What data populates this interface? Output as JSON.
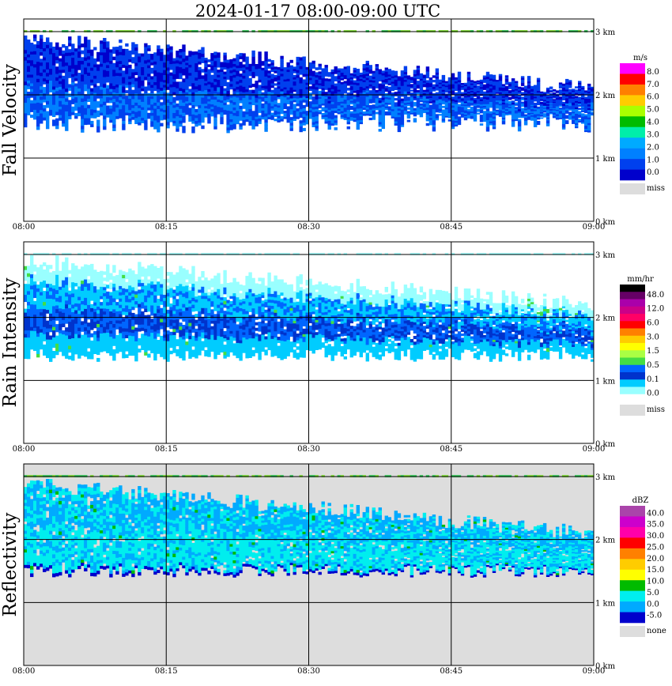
{
  "title": "2024-01-17   08:00-09:00 UTC",
  "time_ticks": [
    "08:00",
    "08:15",
    "08:30",
    "08:45",
    "09:00"
  ],
  "height_ticks": [
    "0 km",
    "1 km",
    "2 km",
    "3 km"
  ],
  "chart_data": [
    {
      "type": "heatmap",
      "panel": "Fall Velocity",
      "ylabel": "Fall Velocity",
      "x_range": [
        "08:00",
        "09:00"
      ],
      "ylim_km": [
        0,
        3.2
      ],
      "grid": true,
      "colorbar": {
        "unit": "m/s",
        "labels": [
          "8.0",
          "7.0",
          "6.0",
          "5.0",
          "4.0",
          "3.0",
          "2.0",
          "1.0",
          "0.0"
        ],
        "colors": [
          "#ff00ff",
          "#ff0000",
          "#ff8000",
          "#ffcc00",
          "#aaff00",
          "#00bb00",
          "#00eeaa",
          "#00aaff",
          "#0080ff",
          "#0040ee",
          "#0000cc"
        ],
        "missing_label": "miss",
        "missing_color": "#dddddd"
      },
      "layer": {
        "base_km": [
          1.4,
          1.7
        ],
        "top_km_at_start": 2.9,
        "top_km_at_end": 2.1,
        "bright_band_km": 3.0
      },
      "background": "#ffffff"
    },
    {
      "type": "heatmap",
      "panel": "Rain Intensity",
      "ylabel": "Rain Intensity",
      "x_range": [
        "08:00",
        "09:00"
      ],
      "ylim_km": [
        0,
        3.2
      ],
      "grid": true,
      "colorbar": {
        "unit": "mm/hr",
        "labels": [
          "48.0",
          "12.0",
          "6.0",
          "3.0",
          "1.5",
          "0.5",
          "0.1",
          "0.0"
        ],
        "colors": [
          "#000000",
          "#660066",
          "#aa00aa",
          "#cc0088",
          "#ff0066",
          "#ff0000",
          "#ff8000",
          "#ffcc00",
          "#ffff00",
          "#aaff44",
          "#44dd44",
          "#0066ff",
          "#0033cc",
          "#00ccff",
          "#99ffff",
          "#ffffff"
        ],
        "missing_label": "miss",
        "missing_color": "#dddddd"
      },
      "layer": {
        "base_km": [
          1.3,
          1.5
        ],
        "top_km_at_start": 2.9,
        "top_km_at_end": 2.2,
        "bright_band_km": 3.0
      },
      "background": "#ffffff"
    },
    {
      "type": "heatmap",
      "panel": "Reflectivity",
      "ylabel": "Reflectivity",
      "x_range": [
        "08:00",
        "09:00"
      ],
      "ylim_km": [
        0,
        3.2
      ],
      "grid": true,
      "colorbar": {
        "unit": "dBZ",
        "labels": [
          "40.0",
          "35.0",
          "30.0",
          "25.0",
          "20.0",
          "15.0",
          "10.0",
          "5.0",
          "0.0",
          "-5.0"
        ],
        "colors": [
          "#aa44aa",
          "#cc00cc",
          "#ff00aa",
          "#ff0000",
          "#ff8000",
          "#ffcc00",
          "#ffff00",
          "#00bb00",
          "#00eeee",
          "#00aaff",
          "#0000cc"
        ],
        "missing_label": "none",
        "missing_color": "#dddddd"
      },
      "layer": {
        "base_km": [
          1.4,
          1.6
        ],
        "top_km_at_start": 2.9,
        "top_km_at_end": 2.1,
        "bright_band_km": 3.0
      },
      "background": "#dddddd"
    }
  ]
}
